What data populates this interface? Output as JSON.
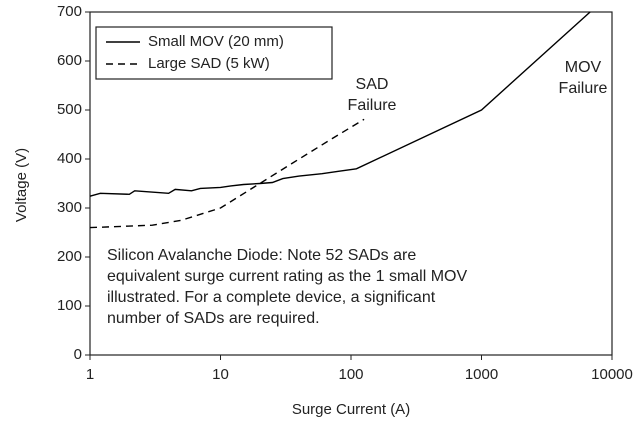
{
  "chart_data": {
    "type": "line",
    "xlabel": "Surge Current (A)",
    "ylabel": "Voltage (V)",
    "xscale": "log",
    "xlim": [
      1,
      10000
    ],
    "xticks": [
      1,
      10,
      100,
      1000,
      10000
    ],
    "ylim": [
      0,
      700
    ],
    "yticks": [
      0,
      100,
      200,
      300,
      400,
      500,
      600,
      700
    ],
    "grid": false,
    "legend": "upper left",
    "series": [
      {
        "name": "Small MOV (20 mm)",
        "color": "#000000",
        "style": "solid",
        "x": [
          1,
          1.2,
          2,
          2.2,
          4,
          4.5,
          6,
          7,
          10,
          12,
          15,
          20,
          25,
          30,
          40,
          60,
          80,
          110,
          1000,
          6800
        ],
        "values": [
          324,
          330,
          328,
          335,
          330,
          338,
          335,
          340,
          342,
          345,
          348,
          350,
          352,
          360,
          365,
          370,
          375,
          380,
          500,
          700
        ]
      },
      {
        "name": "Large SAD (5 kW)",
        "color": "#000000",
        "style": "dashed",
        "x": [
          1,
          3,
          5,
          10,
          20,
          40,
          70,
          126
        ],
        "values": [
          260,
          265,
          275,
          300,
          350,
          400,
          440,
          481
        ]
      }
    ],
    "annotations": [
      [
        "SAD",
        "Failure"
      ],
      [
        "MOV",
        "Failure"
      ],
      [
        "Silicon Avalanche Diode: Note 52 SADs are",
        "equivalent surge current rating as the 1 small MOV",
        "illustrated. For a complete device, a significant",
        "number of SADs are required."
      ]
    ]
  }
}
